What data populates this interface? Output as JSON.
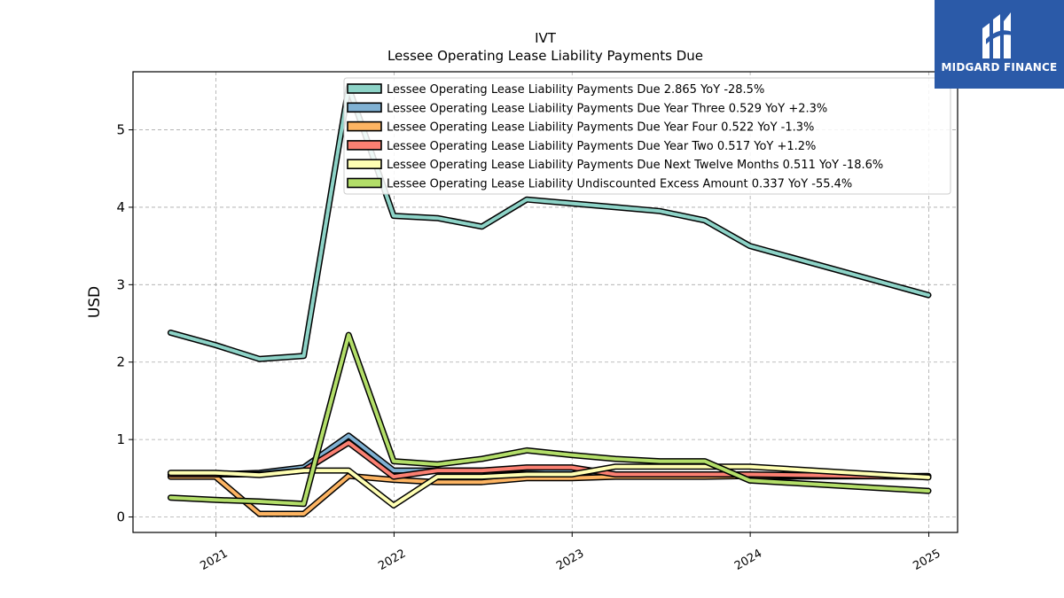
{
  "brand": {
    "name": "MIDGARD FINANCE",
    "icon": "midgard-logo-icon",
    "color": "#2b5aa8"
  },
  "chart_data": {
    "type": "line",
    "title": "IVT",
    "subtitle": "Lessee Operating Lease Liability Payments Due",
    "xlabel": "",
    "ylabel": "USD",
    "xlim": [
      "2020-07-15",
      "2025-03-01"
    ],
    "ylim": [
      -0.2,
      5.75
    ],
    "yticks": [
      0,
      1,
      2,
      3,
      4,
      5
    ],
    "xticks": [
      {
        "date": "2021-01-01",
        "label": "2021"
      },
      {
        "date": "2022-01-01",
        "label": "2022"
      },
      {
        "date": "2023-01-01",
        "label": "2023"
      },
      {
        "date": "2024-01-01",
        "label": "2024"
      },
      {
        "date": "2025-01-01",
        "label": "2025"
      }
    ],
    "grid": true,
    "legend_position": "top",
    "x": [
      "2020-09-30",
      "2020-12-31",
      "2021-03-31",
      "2021-06-30",
      "2021-09-30",
      "2021-12-31",
      "2022-03-31",
      "2022-06-30",
      "2022-09-30",
      "2022-12-31",
      "2023-03-31",
      "2023-06-30",
      "2023-09-30",
      "2023-12-31",
      "2024-12-31"
    ],
    "series": [
      {
        "name": "Lessee Operating Lease Liability Payments Due",
        "legend": "Lessee Operating Lease Liability Payments Due  2.865 YoY -28.5%",
        "color": "#8dd3c7",
        "values": [
          2.38,
          2.22,
          2.04,
          2.08,
          5.55,
          3.89,
          3.86,
          3.75,
          4.1,
          4.05,
          4.0,
          3.95,
          3.83,
          3.5,
          2.865
        ]
      },
      {
        "name": "Lessee Operating Lease Liability Payments Due Year Three",
        "legend": "Lessee Operating Lease Liability Payments Due Year Three  0.529 YoY +2.3%",
        "color": "#80b1d3",
        "values": [
          0.55,
          0.55,
          0.57,
          0.64,
          1.05,
          0.6,
          0.6,
          0.6,
          0.62,
          0.6,
          0.55,
          0.55,
          0.55,
          0.52,
          0.529
        ]
      },
      {
        "name": "Lessee Operating Lease Liability Payments Due Year Four",
        "legend": "Lessee Operating Lease Liability Payments Due Year Four  0.522 YoY -1.3%",
        "color": "#fdb462",
        "values": [
          0.52,
          0.52,
          0.04,
          0.04,
          0.53,
          0.48,
          0.45,
          0.45,
          0.5,
          0.5,
          0.52,
          0.52,
          0.52,
          0.53,
          0.522
        ]
      },
      {
        "name": "Lessee Operating Lease Liability Payments Due Year Two",
        "legend": "Lessee Operating Lease Liability Payments Due Year Two  0.517 YoY +1.2%",
        "color": "#fb8072",
        "values": [
          0.55,
          0.55,
          0.55,
          0.6,
          0.96,
          0.52,
          0.6,
          0.6,
          0.64,
          0.64,
          0.55,
          0.55,
          0.55,
          0.55,
          0.517
        ]
      },
      {
        "name": "Lessee Operating Lease Liability Payments Due Next Twelve Months",
        "legend": "Lessee Operating Lease Liability Payments Due Next Twelve Months  0.511 YoY -18.6%",
        "color": "#ffffb3",
        "values": [
          0.57,
          0.57,
          0.54,
          0.6,
          0.6,
          0.15,
          0.52,
          0.52,
          0.55,
          0.55,
          0.65,
          0.65,
          0.65,
          0.65,
          0.511
        ]
      },
      {
        "name": "Lessee Operating Lease Liability Undiscounted Excess Amount",
        "legend": "Lessee Operating Lease Liability Undiscounted Excess Amount  0.337 YoY -55.4%",
        "color": "#b3de69",
        "values": [
          0.25,
          0.22,
          0.2,
          0.17,
          2.35,
          0.72,
          0.68,
          0.75,
          0.86,
          0.8,
          0.75,
          0.72,
          0.72,
          0.47,
          0.337
        ]
      }
    ]
  }
}
